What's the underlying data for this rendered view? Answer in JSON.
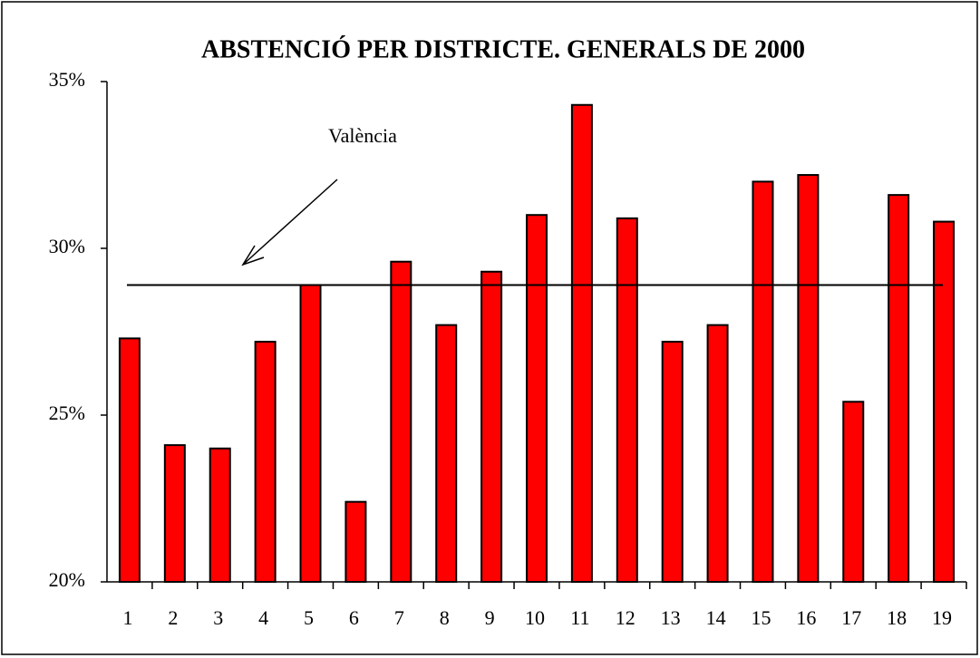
{
  "chart_data": {
    "type": "bar",
    "title": "ABSTENCIÓ PER DISTRICTE. GENERALS DE 2000",
    "categories": [
      "1",
      "2",
      "3",
      "4",
      "5",
      "6",
      "7",
      "8",
      "9",
      "10",
      "11",
      "12",
      "13",
      "14",
      "15",
      "16",
      "17",
      "18",
      "19"
    ],
    "values": [
      27.3,
      24.1,
      24.0,
      27.2,
      28.9,
      22.4,
      29.6,
      27.7,
      29.3,
      31.0,
      34.3,
      30.9,
      27.2,
      27.7,
      32.0,
      32.2,
      25.4,
      31.6,
      30.8
    ],
    "color": "#ff0000",
    "ylim": [
      20,
      35
    ],
    "yticks": [
      {
        "value": 20,
        "label": "20%"
      },
      {
        "value": 25,
        "label": "25%"
      },
      {
        "value": 30,
        "label": "30%"
      },
      {
        "value": 35,
        "label": "35%"
      }
    ],
    "reference_line": {
      "label": "València",
      "value": 28.9
    },
    "grid": false
  }
}
